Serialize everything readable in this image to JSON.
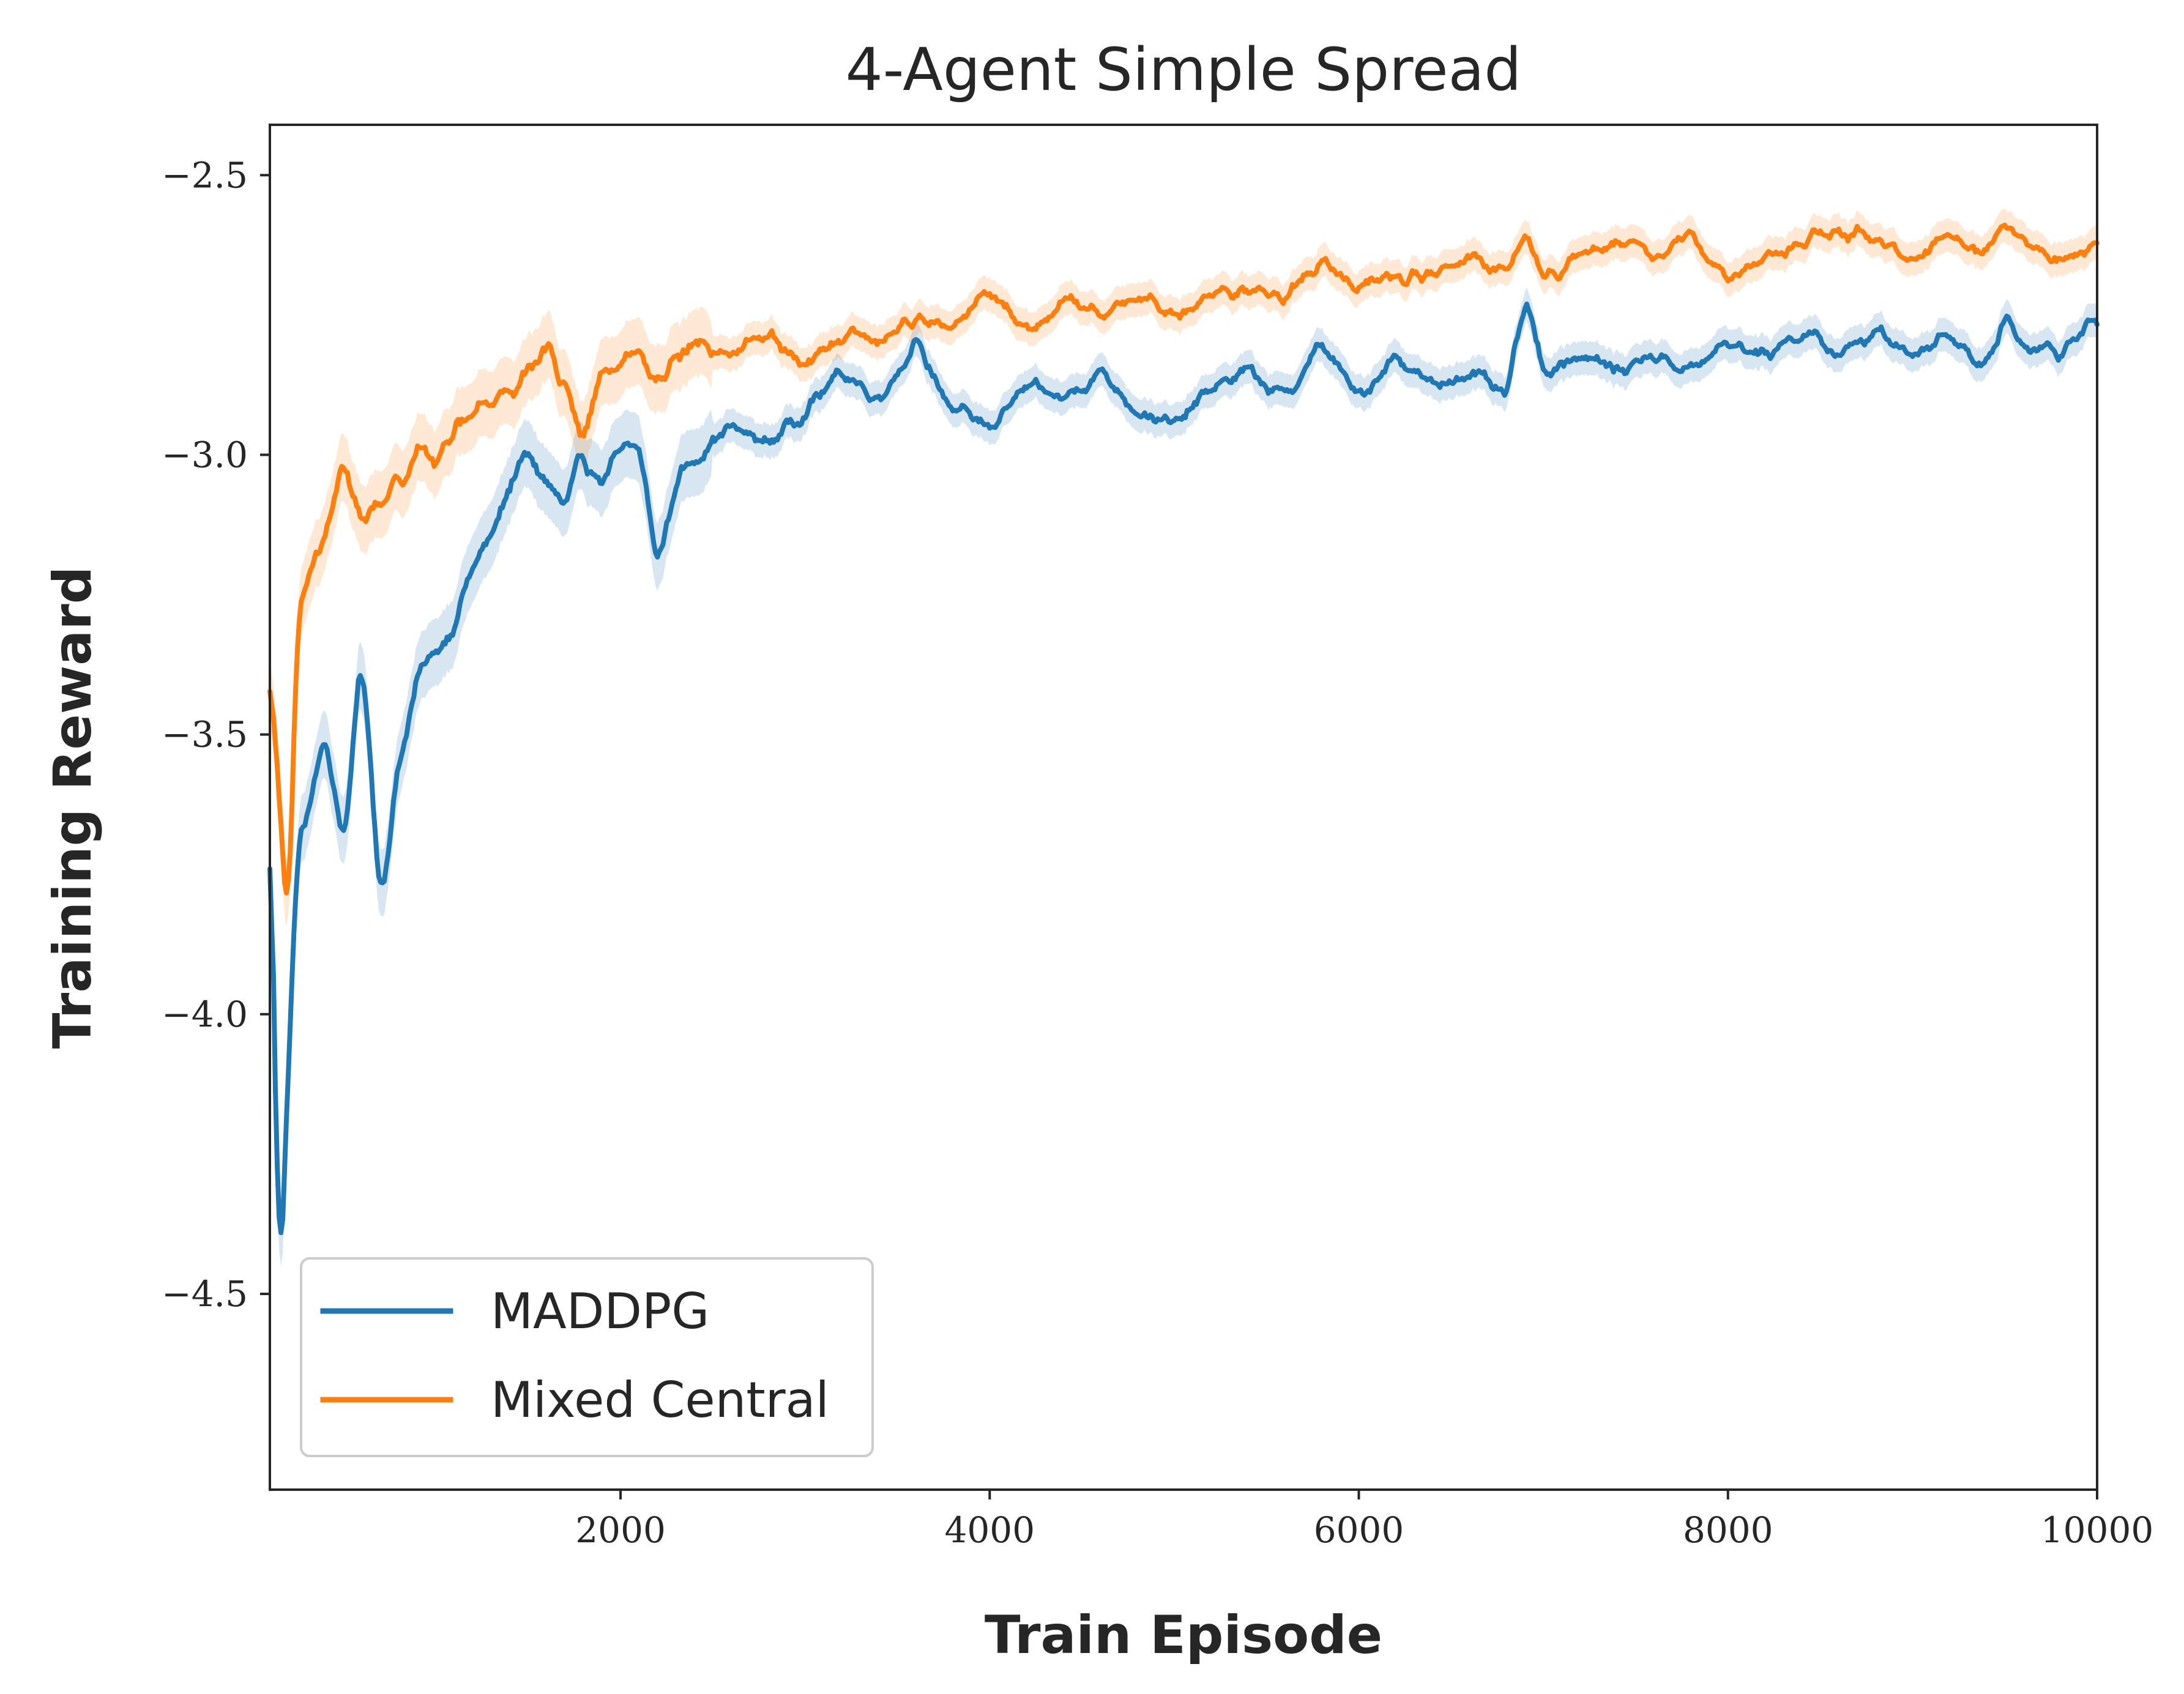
{
  "colors": {
    "maddpg": "#1f77b4",
    "mixed_central": "#ff7f0e",
    "axes": "#262626",
    "background": "#ffffff"
  },
  "chart_data": {
    "type": "line",
    "title": "4-Agent Simple Spread",
    "xlabel": "Train Episode",
    "ylabel": "Training Reward",
    "xlim": [
      100,
      10000
    ],
    "ylim": [
      -4.85,
      -2.41
    ],
    "xticks": [
      2000,
      4000,
      6000,
      8000,
      10000
    ],
    "xtick_labels": [
      "2000",
      "4000",
      "6000",
      "8000",
      "10000"
    ],
    "yticks": [
      -2.5,
      -3.0,
      -3.5,
      -4.0,
      -4.5
    ],
    "ytick_labels": [
      "−2.5",
      "−3.0",
      "−3.5",
      "−4.0",
      "−4.5"
    ],
    "grid": false,
    "legend_position": "lower-left",
    "shaded_band": "variance band around each series",
    "series": [
      {
        "name": "MADDPG",
        "color": "#1f77b4",
        "x": [
          100,
          150,
          200,
          250,
          300,
          400,
          500,
          600,
          700,
          800,
          900,
          1000,
          1100,
          1200,
          1300,
          1400,
          1500,
          1600,
          1700,
          1800,
          1900,
          2000,
          2100,
          2200,
          2300,
          2400,
          2600,
          2800,
          3000,
          3200,
          3400,
          3600,
          3800,
          4000,
          4200,
          4400,
          4600,
          4800,
          5000,
          5200,
          5400,
          5600,
          5800,
          6000,
          6200,
          6400,
          6600,
          6800,
          6900,
          7000,
          7200,
          7400,
          7600,
          7800,
          8000,
          8200,
          8400,
          8600,
          8800,
          9000,
          9200,
          9400,
          9500,
          9600,
          9800,
          10000
        ],
        "values": [
          -3.55,
          -4.52,
          -4.1,
          -3.7,
          -3.65,
          -3.5,
          -3.7,
          -3.35,
          -3.8,
          -3.55,
          -3.4,
          -3.35,
          -3.3,
          -3.2,
          -3.15,
          -3.05,
          -3.0,
          -3.05,
          -3.1,
          -3.0,
          -3.05,
          -3.0,
          -2.98,
          -3.2,
          -3.05,
          -3.0,
          -2.95,
          -2.98,
          -2.92,
          -2.85,
          -2.9,
          -2.8,
          -2.92,
          -2.95,
          -2.88,
          -2.9,
          -2.85,
          -2.92,
          -2.95,
          -2.88,
          -2.85,
          -2.9,
          -2.8,
          -2.9,
          -2.82,
          -2.88,
          -2.85,
          -2.9,
          -2.72,
          -2.85,
          -2.82,
          -2.85,
          -2.82,
          -2.85,
          -2.8,
          -2.82,
          -2.78,
          -2.82,
          -2.78,
          -2.82,
          -2.78,
          -2.85,
          -2.75,
          -2.8,
          -2.82,
          -2.75
        ]
      },
      {
        "name": "Mixed Central",
        "color": "#ff7f0e",
        "x": [
          100,
          150,
          200,
          250,
          300,
          400,
          500,
          600,
          700,
          800,
          900,
          1000,
          1100,
          1200,
          1300,
          1400,
          1500,
          1600,
          1700,
          1800,
          1900,
          2000,
          2100,
          2200,
          2300,
          2400,
          2600,
          2800,
          3000,
          3200,
          3400,
          3600,
          3800,
          4000,
          4200,
          4400,
          4600,
          4800,
          5000,
          5200,
          5400,
          5600,
          5800,
          6000,
          6200,
          6400,
          6600,
          6800,
          6900,
          7000,
          7200,
          7400,
          7600,
          7800,
          8000,
          8200,
          8400,
          8600,
          8800,
          9000,
          9200,
          9400,
          9500,
          9600,
          9800,
          10000
        ],
        "values": [
          -3.4,
          -3.6,
          -3.88,
          -3.3,
          -3.2,
          -3.15,
          -3.02,
          -3.12,
          -3.08,
          -3.05,
          -2.98,
          -3.02,
          -2.95,
          -2.92,
          -2.9,
          -2.88,
          -2.85,
          -2.8,
          -2.88,
          -2.98,
          -2.85,
          -2.85,
          -2.82,
          -2.88,
          -2.82,
          -2.8,
          -2.82,
          -2.78,
          -2.85,
          -2.78,
          -2.8,
          -2.75,
          -2.78,
          -2.7,
          -2.78,
          -2.72,
          -2.75,
          -2.72,
          -2.75,
          -2.72,
          -2.7,
          -2.72,
          -2.65,
          -2.7,
          -2.68,
          -2.68,
          -2.65,
          -2.68,
          -2.6,
          -2.68,
          -2.65,
          -2.62,
          -2.65,
          -2.6,
          -2.68,
          -2.65,
          -2.62,
          -2.6,
          -2.62,
          -2.65,
          -2.6,
          -2.65,
          -2.58,
          -2.62,
          -2.65,
          -2.62
        ]
      }
    ]
  }
}
